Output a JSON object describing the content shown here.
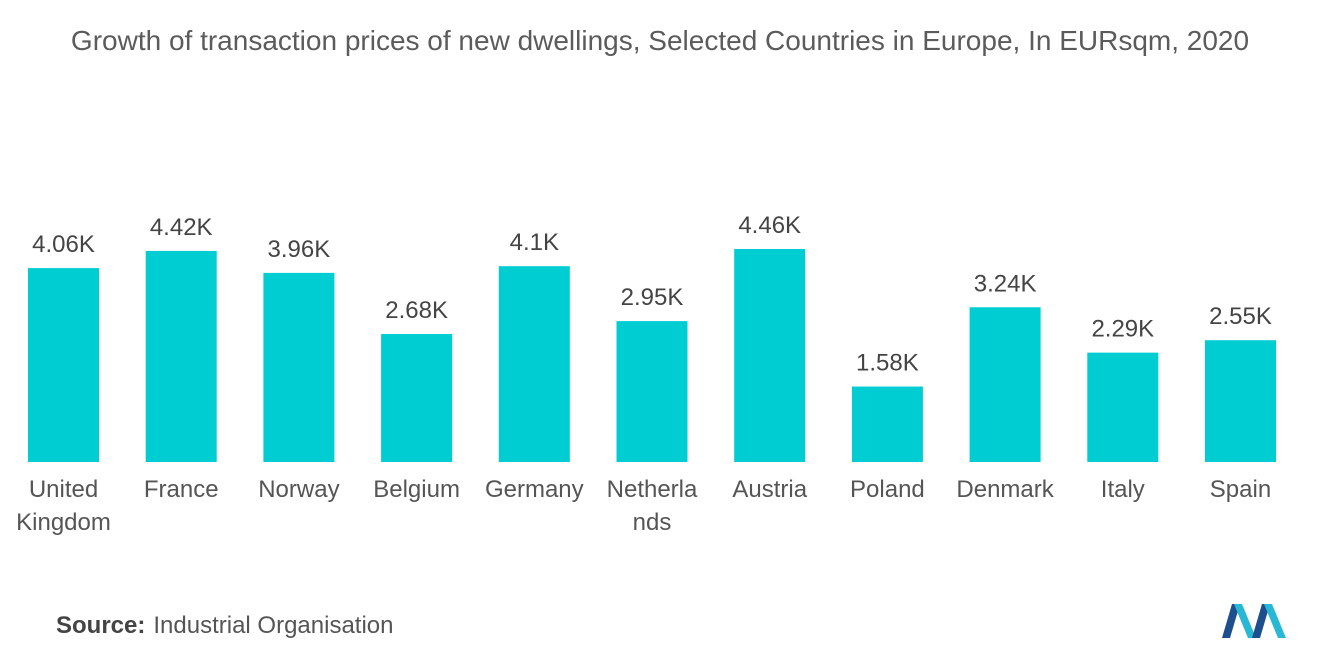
{
  "header": {
    "title": "Growth of transaction prices of new dwellings, Selected Countries in Europe, In EURsqm, 2020"
  },
  "chart_data": {
    "type": "bar",
    "title": "Growth of transaction prices of new dwellings, Selected Countries in Europe, In EURsqm, 2020",
    "categories": [
      "United Kingdom",
      "France",
      "Norway",
      "Belgium",
      "Germany",
      "Netherlands",
      "Austria",
      "Poland",
      "Denmark",
      "Italy",
      "Spain"
    ],
    "category_label_lines": [
      [
        "United",
        "Kingdom"
      ],
      [
        "France"
      ],
      [
        "Norway"
      ],
      [
        "Belgium"
      ],
      [
        "Germany"
      ],
      [
        "Netherla",
        "nds"
      ],
      [
        "Austria"
      ],
      [
        "Poland"
      ],
      [
        "Denmark"
      ],
      [
        "Italy"
      ],
      [
        "Spain"
      ]
    ],
    "values": [
      4.06,
      4.42,
      3.96,
      2.68,
      4.1,
      2.95,
      4.46,
      1.58,
      3.24,
      2.29,
      2.55
    ],
    "value_labels": [
      "4.06K",
      "4.42K",
      "3.96K",
      "2.68K",
      "4.1K",
      "2.95K",
      "4.46K",
      "1.58K",
      "3.24K",
      "2.29K",
      "2.55K"
    ],
    "unit": "K",
    "bar_color": "#00cdd1",
    "ylim": [
      0,
      4.46
    ],
    "grid": false,
    "legend": "none"
  },
  "footer": {
    "source_label": "Source:",
    "source_value": "Industrial Organisation"
  },
  "logo": {
    "icon": "mordor-intelligence-logo",
    "colors": [
      "#1d4f8c",
      "#29b8d4"
    ]
  }
}
